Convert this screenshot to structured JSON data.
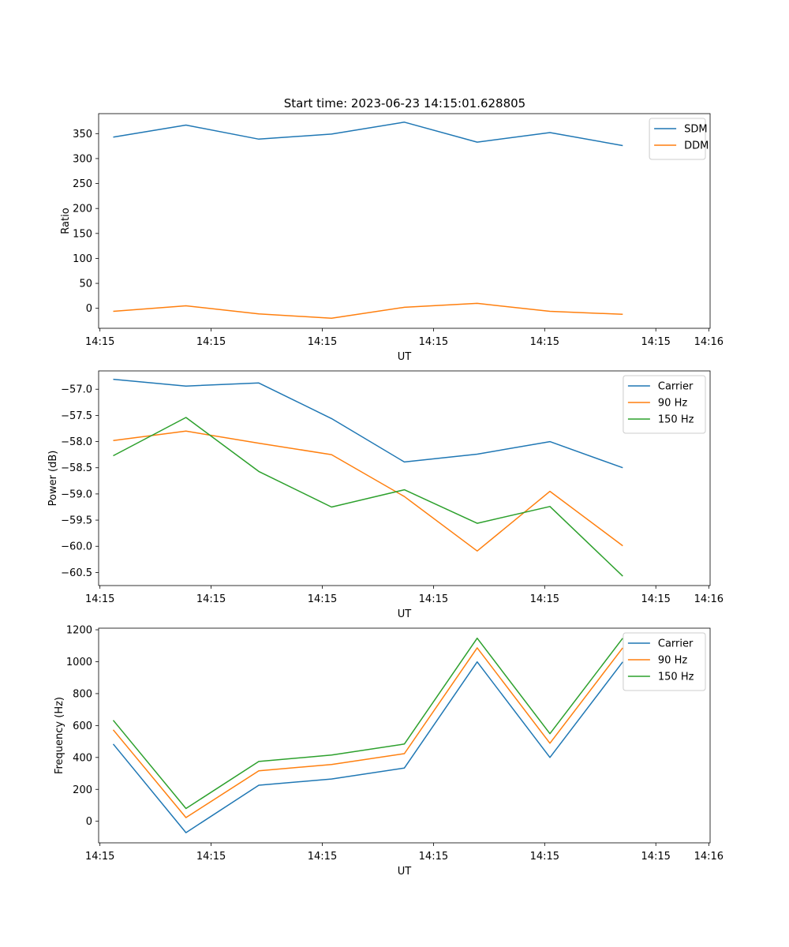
{
  "title": "Start time: 2023-06-23 14:15:01.628805",
  "chart_data": [
    {
      "type": "line",
      "x": [
        1,
        2,
        3,
        4,
        5,
        6,
        7,
        8
      ],
      "xlim": [
        0.8,
        9.2
      ],
      "xticks": [
        {
          "value": 0.8182,
          "label": "14:15"
        },
        {
          "value": 2.3455,
          "label": "14:15"
        },
        {
          "value": 3.8727,
          "label": "14:15"
        },
        {
          "value": 5.4,
          "label": "14:15"
        },
        {
          "value": 6.9273,
          "label": "14:15"
        },
        {
          "value": 8.4545,
          "label": "14:15"
        },
        {
          "value": 9.1818,
          "label": "14:16"
        }
      ],
      "xlabel": "UT",
      "ylabel": "Ratio",
      "ylim": [
        -40,
        390
      ],
      "yticks": [
        0,
        50,
        100,
        150,
        200,
        250,
        300,
        350
      ],
      "legend": "top-right",
      "series": [
        {
          "name": "SDM",
          "color": "#1f77b4",
          "values": [
            343,
            367,
            339,
            349,
            373,
            333,
            352,
            326
          ]
        },
        {
          "name": "DDM",
          "color": "#ff7f0e",
          "values": [
            -6,
            5,
            -11,
            -20,
            2,
            10,
            -6,
            -12
          ]
        }
      ]
    },
    {
      "type": "line",
      "x": [
        1,
        2,
        3,
        4,
        5,
        6,
        7,
        8
      ],
      "xlim": [
        0.8,
        9.2
      ],
      "xticks": [
        {
          "value": 0.8182,
          "label": "14:15"
        },
        {
          "value": 2.3455,
          "label": "14:15"
        },
        {
          "value": 3.8727,
          "label": "14:15"
        },
        {
          "value": 5.4,
          "label": "14:15"
        },
        {
          "value": 6.9273,
          "label": "14:15"
        },
        {
          "value": 8.4545,
          "label": "14:15"
        },
        {
          "value": 9.1818,
          "label": "14:16"
        }
      ],
      "xlabel": "UT",
      "ylabel": "Power (dB)",
      "ylim": [
        -60.75,
        -56.65
      ],
      "yticks": [
        -57.0,
        -57.5,
        -58.0,
        -58.5,
        -59.0,
        -59.5,
        -60.0,
        -60.5
      ],
      "ytick_labels": [
        "−57.0",
        "−57.5",
        "−58.0",
        "−58.5",
        "−59.0",
        "−59.5",
        "−60.0",
        "−60.5"
      ],
      "legend": "top-right",
      "series": [
        {
          "name": "Carrier",
          "color": "#1f77b4",
          "values": [
            -56.81,
            -56.94,
            -56.88,
            -57.56,
            -58.39,
            -58.24,
            -58.0,
            -58.5
          ]
        },
        {
          "name": "90 Hz",
          "color": "#ff7f0e",
          "values": [
            -57.98,
            -57.8,
            -58.03,
            -58.25,
            -59.05,
            -60.09,
            -58.95,
            -59.99
          ]
        },
        {
          "name": "150 Hz",
          "color": "#2ca02c",
          "values": [
            -58.27,
            -57.54,
            -58.57,
            -59.25,
            -58.92,
            -59.56,
            -59.24,
            -60.57
          ]
        }
      ]
    },
    {
      "type": "line",
      "x": [
        1,
        2,
        3,
        4,
        5,
        6,
        7,
        8
      ],
      "xlim": [
        0.8,
        9.2
      ],
      "xticks": [
        {
          "value": 0.8182,
          "label": "14:15"
        },
        {
          "value": 2.3455,
          "label": "14:15"
        },
        {
          "value": 3.8727,
          "label": "14:15"
        },
        {
          "value": 5.4,
          "label": "14:15"
        },
        {
          "value": 6.9273,
          "label": "14:15"
        },
        {
          "value": 8.4545,
          "label": "14:15"
        },
        {
          "value": 9.1818,
          "label": "14:16"
        }
      ],
      "xlabel": "UT",
      "ylabel": "Frequency (Hz)",
      "ylim": [
        -135,
        1210
      ],
      "yticks": [
        0,
        200,
        400,
        600,
        800,
        1000,
        1200
      ],
      "legend": "top-right",
      "series": [
        {
          "name": "Carrier",
          "color": "#1f77b4",
          "values": [
            484,
            -71,
            226,
            265,
            334,
            999,
            400,
            999
          ]
        },
        {
          "name": "90 Hz",
          "color": "#ff7f0e",
          "values": [
            573,
            23,
            316,
            356,
            424,
            1087,
            489,
            1087
          ]
        },
        {
          "name": "150 Hz",
          "color": "#2ca02c",
          "values": [
            633,
            80,
            375,
            415,
            484,
            1147,
            549,
            1147
          ]
        }
      ]
    }
  ]
}
